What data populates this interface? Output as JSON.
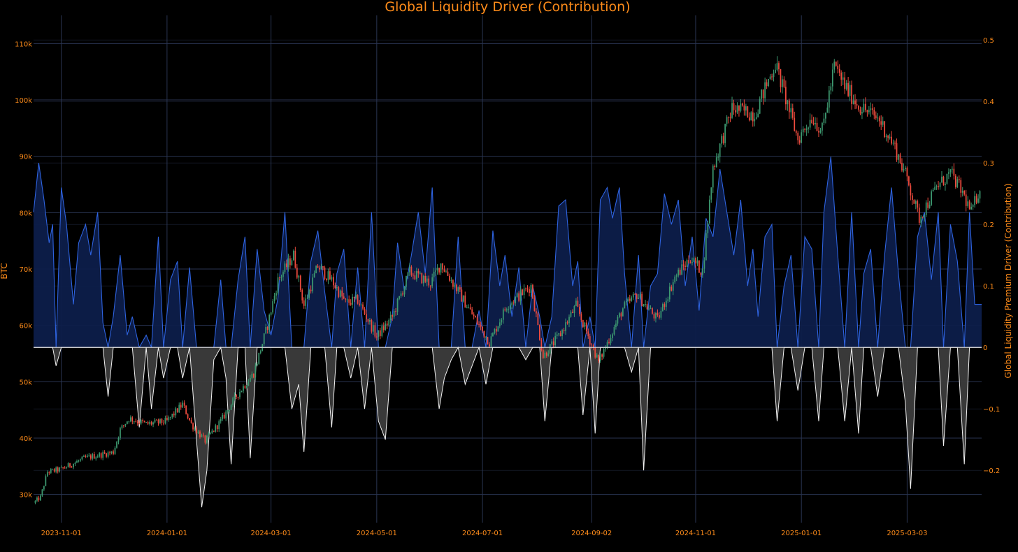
{
  "chart_data": {
    "type": "candlestick+area",
    "title": "Global Liquidity Driver (Contribution)",
    "y_left_label": "BTC",
    "y_right_label": "Global Liquidity Premium Driver (Contribution)",
    "x_ticks": [
      "2023-11-01",
      "2024-01-01",
      "2024-03-01",
      "2024-05-01",
      "2024-07-01",
      "2024-09-02",
      "2024-11-01",
      "2025-01-01",
      "2025-03-03"
    ],
    "y_left_ticks": [
      {
        "v": 30000,
        "label": "30k"
      },
      {
        "v": 40000,
        "label": "40k"
      },
      {
        "v": 50000,
        "label": "50k"
      },
      {
        "v": 60000,
        "label": "60k"
      },
      {
        "v": 70000,
        "label": "70k"
      },
      {
        "v": 80000,
        "label": "80k"
      },
      {
        "v": 90000,
        "label": "90k"
      },
      {
        "v": 100000,
        "label": "100k"
      },
      {
        "v": 110000,
        "label": "110k"
      }
    ],
    "y_left_range": [
      25000,
      115000
    ],
    "y_right_ticks": [
      {
        "v": -0.2,
        "label": "−0.2"
      },
      {
        "v": -0.1,
        "label": "−0.1"
      },
      {
        "v": 0,
        "label": "0"
      },
      {
        "v": 0.1,
        "label": "0.1"
      },
      {
        "v": 0.2,
        "label": "0.2"
      },
      {
        "v": 0.3,
        "label": "0.3"
      },
      {
        "v": 0.4,
        "label": "0.4"
      },
      {
        "v": 0.5,
        "label": "0.5"
      }
    ],
    "y_right_range": [
      -0.285,
      0.54
    ],
    "x_range": [
      "2023-10-16",
      "2025-04-15"
    ],
    "colors": {
      "background": "#000000",
      "grid": "#2a3552",
      "text": "#ff8c1a",
      "candle_up": "#3d9970",
      "candle_down": "#ef4b3e",
      "positive_line": "#2e63e0",
      "positive_fill": "#0d1e4a",
      "negative_line": "#f2f2f2",
      "negative_fill": "#3c3c3c",
      "zero_line": "#e8e8e8"
    },
    "btc_price_path": [
      [
        "2023-10-16",
        28500
      ],
      [
        "2023-10-20",
        29500
      ],
      [
        "2023-10-24",
        34000
      ],
      [
        "2023-11-01",
        34500
      ],
      [
        "2023-11-15",
        36500
      ],
      [
        "2023-12-01",
        37500
      ],
      [
        "2023-12-05",
        41500
      ],
      [
        "2023-12-10",
        43500
      ],
      [
        "2023-12-20",
        42500
      ],
      [
        "2024-01-01",
        43000
      ],
      [
        "2024-01-10",
        46000
      ],
      [
        "2024-01-15",
        42500
      ],
      [
        "2024-01-23",
        39500
      ],
      [
        "2024-02-01",
        43000
      ],
      [
        "2024-02-10",
        47500
      ],
      [
        "2024-02-20",
        51500
      ],
      [
        "2024-02-28",
        60000
      ],
      [
        "2024-03-05",
        68000
      ],
      [
        "2024-03-14",
        72500
      ],
      [
        "2024-03-20",
        63500
      ],
      [
        "2024-03-28",
        70500
      ],
      [
        "2024-04-05",
        68000
      ],
      [
        "2024-04-13",
        64000
      ],
      [
        "2024-04-20",
        64500
      ],
      [
        "2024-05-01",
        58000
      ],
      [
        "2024-05-10",
        61500
      ],
      [
        "2024-05-20",
        69500
      ],
      [
        "2024-06-01",
        67500
      ],
      [
        "2024-06-07",
        71000
      ],
      [
        "2024-06-20",
        64500
      ],
      [
        "2024-07-05",
        57000
      ],
      [
        "2024-07-15",
        63500
      ],
      [
        "2024-07-29",
        67000
      ],
      [
        "2024-08-05",
        54500
      ],
      [
        "2024-08-15",
        58500
      ],
      [
        "2024-08-24",
        63500
      ],
      [
        "2024-09-06",
        53500
      ],
      [
        "2024-09-20",
        63000
      ],
      [
        "2024-09-28",
        65500
      ],
      [
        "2024-10-10",
        61000
      ],
      [
        "2024-10-20",
        68500
      ],
      [
        "2024-10-29",
        72000
      ],
      [
        "2024-11-05",
        69500
      ],
      [
        "2024-11-11",
        88000
      ],
      [
        "2024-11-22",
        98500
      ],
      [
        "2024-12-05",
        97500
      ],
      [
        "2024-12-17",
        106500
      ],
      [
        "2024-12-30",
        93000
      ],
      [
        "2025-01-07",
        97000
      ],
      [
        "2025-01-13",
        94500
      ],
      [
        "2025-01-20",
        106000
      ],
      [
        "2025-01-27",
        102000
      ],
      [
        "2025-02-03",
        99000
      ],
      [
        "2025-02-15",
        96500
      ],
      [
        "2025-02-24",
        91500
      ],
      [
        "2025-03-03",
        86000
      ],
      [
        "2025-03-10",
        79000
      ],
      [
        "2025-03-20",
        84500
      ],
      [
        "2025-03-28",
        87000
      ],
      [
        "2025-04-04",
        83500
      ],
      [
        "2025-04-09",
        80000
      ],
      [
        "2025-04-14",
        84500
      ]
    ],
    "driver_path": [
      [
        "2023-10-16",
        0.22
      ],
      [
        "2023-10-19",
        0.3
      ],
      [
        "2023-10-22",
        0.24
      ],
      [
        "2023-10-25",
        0.17
      ],
      [
        "2023-10-27",
        0.2
      ],
      [
        "2023-10-29",
        -0.03
      ],
      [
        "2023-11-01",
        0.26
      ],
      [
        "2023-11-04",
        0.2
      ],
      [
        "2023-11-08",
        0.07
      ],
      [
        "2023-11-11",
        0.17
      ],
      [
        "2023-11-15",
        0.2
      ],
      [
        "2023-11-18",
        0.15
      ],
      [
        "2023-11-22",
        0.22
      ],
      [
        "2023-11-25",
        0.04
      ],
      [
        "2023-11-28",
        -0.08
      ],
      [
        "2023-12-01",
        0.05
      ],
      [
        "2023-12-05",
        0.15
      ],
      [
        "2023-12-09",
        0.02
      ],
      [
        "2023-12-12",
        0.05
      ],
      [
        "2023-12-16",
        -0.13
      ],
      [
        "2023-12-20",
        0.02
      ],
      [
        "2023-12-23",
        -0.1
      ],
      [
        "2023-12-27",
        0.18
      ],
      [
        "2023-12-30",
        -0.05
      ],
      [
        "2024-01-03",
        0.11
      ],
      [
        "2024-01-07",
        0.14
      ],
      [
        "2024-01-10",
        -0.05
      ],
      [
        "2024-01-14",
        0.13
      ],
      [
        "2024-01-18",
        -0.15
      ],
      [
        "2024-01-21",
        -0.26
      ],
      [
        "2024-01-24",
        -0.2
      ],
      [
        "2024-01-28",
        -0.02
      ],
      [
        "2024-02-01",
        0.11
      ],
      [
        "2024-02-04",
        -0.05
      ],
      [
        "2024-02-07",
        -0.19
      ],
      [
        "2024-02-11",
        0.11
      ],
      [
        "2024-02-15",
        0.18
      ],
      [
        "2024-02-18",
        -0.18
      ],
      [
        "2024-02-22",
        0.16
      ],
      [
        "2024-02-26",
        0.06
      ],
      [
        "2024-03-01",
        0.02
      ],
      [
        "2024-03-05",
        0.08
      ],
      [
        "2024-03-09",
        0.22
      ],
      [
        "2024-03-13",
        -0.1
      ],
      [
        "2024-03-17",
        -0.06
      ],
      [
        "2024-03-20",
        -0.17
      ],
      [
        "2024-03-24",
        0.14
      ],
      [
        "2024-03-28",
        0.19
      ],
      [
        "2024-04-01",
        0.09
      ],
      [
        "2024-04-05",
        -0.13
      ],
      [
        "2024-04-08",
        0.12
      ],
      [
        "2024-04-12",
        0.16
      ],
      [
        "2024-04-16",
        -0.05
      ],
      [
        "2024-04-20",
        0.13
      ],
      [
        "2024-04-24",
        -0.1
      ],
      [
        "2024-04-28",
        0.22
      ],
      [
        "2024-05-02",
        -0.12
      ],
      [
        "2024-05-06",
        -0.15
      ],
      [
        "2024-05-10",
        0.05
      ],
      [
        "2024-05-13",
        0.17
      ],
      [
        "2024-05-17",
        0.09
      ],
      [
        "2024-05-21",
        0.15
      ],
      [
        "2024-05-25",
        0.22
      ],
      [
        "2024-05-29",
        0.12
      ],
      [
        "2024-06-02",
        0.26
      ],
      [
        "2024-06-06",
        -0.1
      ],
      [
        "2024-06-09",
        -0.05
      ],
      [
        "2024-06-13",
        -0.02
      ],
      [
        "2024-06-17",
        0.18
      ],
      [
        "2024-06-21",
        -0.06
      ],
      [
        "2024-06-25",
        -0.03
      ],
      [
        "2024-06-29",
        0.06
      ],
      [
        "2024-07-03",
        -0.06
      ],
      [
        "2024-07-07",
        0.19
      ],
      [
        "2024-07-11",
        0.1
      ],
      [
        "2024-07-14",
        0.15
      ],
      [
        "2024-07-18",
        0.05
      ],
      [
        "2024-07-22",
        0.13
      ],
      [
        "2024-07-26",
        -0.02
      ],
      [
        "2024-07-30",
        0.1
      ],
      [
        "2024-08-03",
        0.05
      ],
      [
        "2024-08-06",
        -0.12
      ],
      [
        "2024-08-10",
        0.05
      ],
      [
        "2024-08-14",
        0.23
      ],
      [
        "2024-08-18",
        0.24
      ],
      [
        "2024-08-22",
        0.1
      ],
      [
        "2024-08-25",
        0.14
      ],
      [
        "2024-08-28",
        -0.11
      ],
      [
        "2024-09-01",
        0.05
      ],
      [
        "2024-09-04",
        -0.14
      ],
      [
        "2024-09-07",
        0.24
      ],
      [
        "2024-09-11",
        0.26
      ],
      [
        "2024-09-14",
        0.21
      ],
      [
        "2024-09-18",
        0.26
      ],
      [
        "2024-09-21",
        0.12
      ],
      [
        "2024-09-25",
        -0.04
      ],
      [
        "2024-09-29",
        0.15
      ],
      [
        "2024-10-02",
        -0.2
      ],
      [
        "2024-10-06",
        0.1
      ],
      [
        "2024-10-10",
        0.12
      ],
      [
        "2024-10-14",
        0.25
      ],
      [
        "2024-10-18",
        0.2
      ],
      [
        "2024-10-22",
        0.24
      ],
      [
        "2024-10-26",
        0.1
      ],
      [
        "2024-10-30",
        0.18
      ],
      [
        "2024-11-03",
        0.06
      ],
      [
        "2024-11-07",
        0.21
      ],
      [
        "2024-11-11",
        0.18
      ],
      [
        "2024-11-15",
        0.29
      ],
      [
        "2024-11-19",
        0.22
      ],
      [
        "2024-11-23",
        0.15
      ],
      [
        "2024-11-27",
        0.24
      ],
      [
        "2024-12-01",
        0.1
      ],
      [
        "2024-12-04",
        0.16
      ],
      [
        "2024-12-07",
        0.05
      ],
      [
        "2024-12-11",
        0.18
      ],
      [
        "2024-12-15",
        0.2
      ],
      [
        "2024-12-18",
        -0.12
      ],
      [
        "2024-12-22",
        0.1
      ],
      [
        "2024-12-26",
        0.15
      ],
      [
        "2024-12-30",
        -0.07
      ],
      [
        "2025-01-03",
        0.18
      ],
      [
        "2025-01-07",
        0.16
      ],
      [
        "2025-01-11",
        -0.12
      ],
      [
        "2025-01-14",
        0.22
      ],
      [
        "2025-01-18",
        0.31
      ],
      [
        "2025-01-22",
        0.15
      ],
      [
        "2025-01-26",
        -0.12
      ],
      [
        "2025-01-30",
        0.22
      ],
      [
        "2025-02-03",
        -0.14
      ],
      [
        "2025-02-06",
        0.12
      ],
      [
        "2025-02-10",
        0.16
      ],
      [
        "2025-02-14",
        -0.08
      ],
      [
        "2025-02-18",
        0.15
      ],
      [
        "2025-02-22",
        0.26
      ],
      [
        "2025-02-26",
        0.12
      ],
      [
        "2025-03-02",
        -0.09
      ],
      [
        "2025-03-05",
        -0.23
      ],
      [
        "2025-03-09",
        0.18
      ],
      [
        "2025-03-13",
        0.22
      ],
      [
        "2025-03-17",
        0.11
      ],
      [
        "2025-03-21",
        0.22
      ],
      [
        "2025-03-24",
        -0.16
      ],
      [
        "2025-03-28",
        0.2
      ],
      [
        "2025-04-01",
        0.14
      ],
      [
        "2025-04-05",
        -0.19
      ],
      [
        "2025-04-08",
        0.22
      ],
      [
        "2025-04-11",
        0.07
      ],
      [
        "2025-04-15",
        0.07
      ]
    ]
  }
}
